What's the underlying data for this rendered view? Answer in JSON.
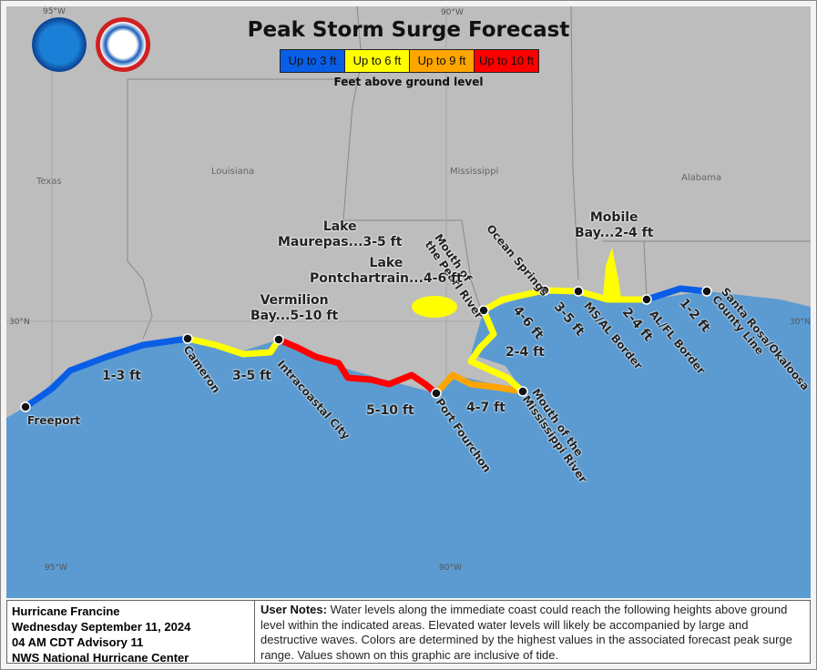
{
  "title": "Peak Storm Surge Forecast",
  "legend": {
    "items": [
      {
        "label": "Up to 3 ft",
        "color": "#0a5ee6"
      },
      {
        "label": "Up to 6 ft",
        "color": "#ffff00"
      },
      {
        "label": "Up to 9 ft",
        "color": "#ffa500"
      },
      {
        "label": "Up to 10 ft",
        "color": "#ff0000"
      }
    ],
    "subtitle": "Feet above ground level"
  },
  "logos": {
    "noaa": "NOAA",
    "nws": "NATIONAL WEATHER SERVICE"
  },
  "grid_labels": {
    "lon95": "95°W",
    "lon90": "90°W",
    "lat30": "30°N"
  },
  "states": {
    "texas": "Texas",
    "louisiana": "Louisiana",
    "mississippi": "Mississippi",
    "alabama": "Alabama"
  },
  "places": {
    "freeport": "Freeport",
    "cameron": "Cameron",
    "intracoastal": "Intracoastal City",
    "fourchon": "Port Fourchon",
    "mouth_ms": "Mouth of the\nMississippi River",
    "pearl": "Mouth of\nthe Pearl River",
    "ocean_springs": "Ocean Springs",
    "msal": "MS/AL Border",
    "alfl": "AL/FL Border",
    "santa_rosa": "Santa Rosa/Okaloosa\nCounty Line"
  },
  "surge": {
    "freeport_cameron": "1-3 ft",
    "cameron_vermilion": "3-5 ft",
    "vermilion_fourchon": "5-10 ft",
    "fourchon_mouth": "4-7 ft",
    "mouth_pearl": "2-4 ft",
    "pearl_os": "4-6 ft",
    "os_msal": "3-5 ft",
    "msal_alfl": "2-4 ft",
    "alfl_santarosa": "1-2 ft",
    "vermilion_bay": "Vermilion\nBay...5-10 ft",
    "maurepas": "Lake\nMaurepas...3-5 ft",
    "pontchartrain": "Lake\nPontchartrain...4-6 ft",
    "mobile_bay": "Mobile\nBay...2-4 ft"
  },
  "colors": {
    "land": "#bdbdbd",
    "water": "#5b9bd1"
  },
  "info": {
    "storm": "Hurricane Francine",
    "date": "Wednesday September 11, 2024",
    "advisory": "04 AM CDT Advisory 11",
    "office": "NWS National Hurricane Center"
  },
  "notes": {
    "label": "User Notes:",
    "text": " Water levels along the immediate coast could reach the following heights above ground level within the indicated areas. Elevated water levels will likely be accompanied by large and destructive waves. Colors are determined by the highest values in the associated forecast peak surge range. Values shown on this graphic are inclusive of tide."
  }
}
